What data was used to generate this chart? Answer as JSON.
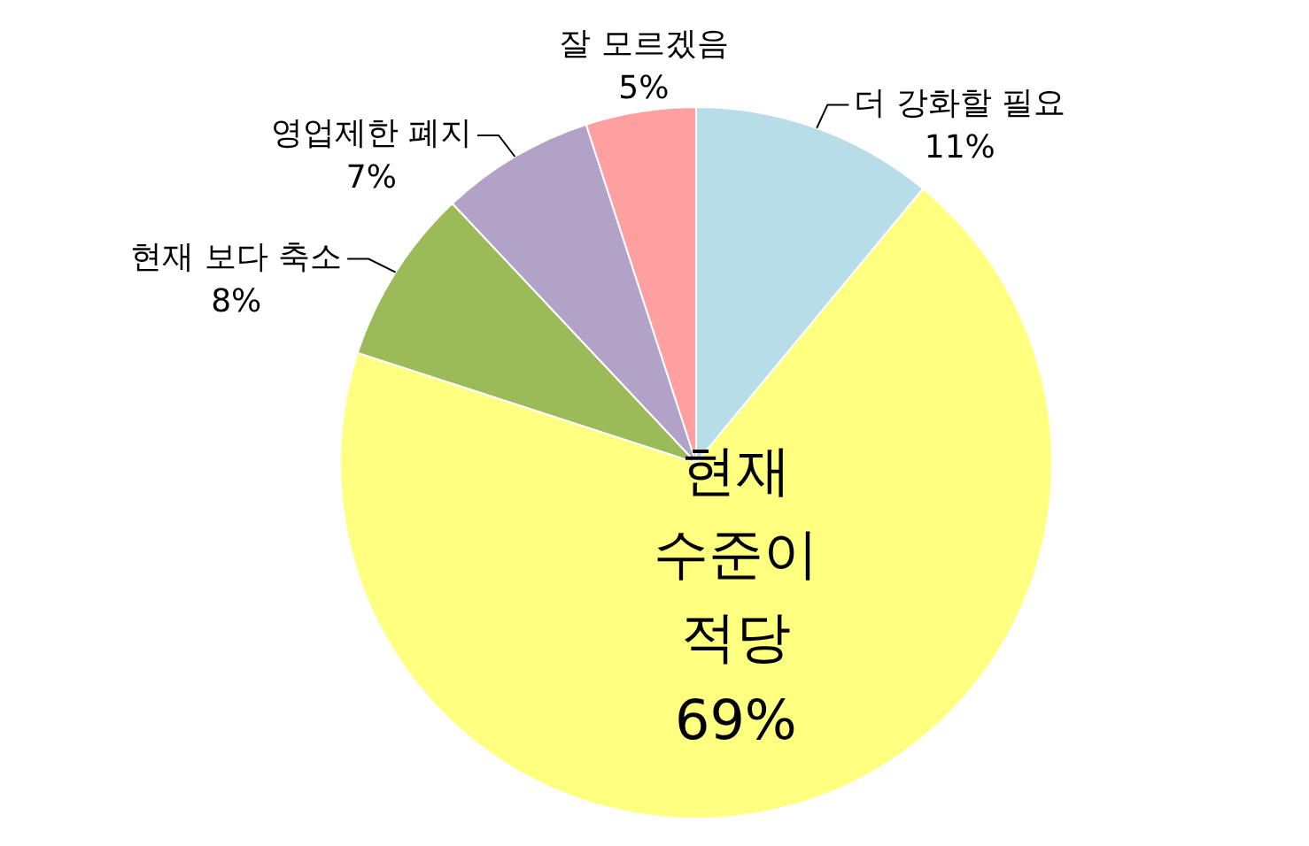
{
  "chart_data": {
    "type": "pie",
    "categories": [
      "더 강화할 필요",
      "현재 수준이 적당",
      "현재 보다 축소",
      "영업제한 폐지",
      "잘 모르겠음"
    ],
    "values": [
      11,
      69,
      8,
      7,
      5
    ],
    "colors": [
      "#b7dde8",
      "#ffff80",
      "#9bbb59",
      "#b3a2c7",
      "#ff9f9f"
    ],
    "value_labels": [
      "11%",
      "69%",
      "8%",
      "7%",
      "5%"
    ],
    "legend": false
  }
}
